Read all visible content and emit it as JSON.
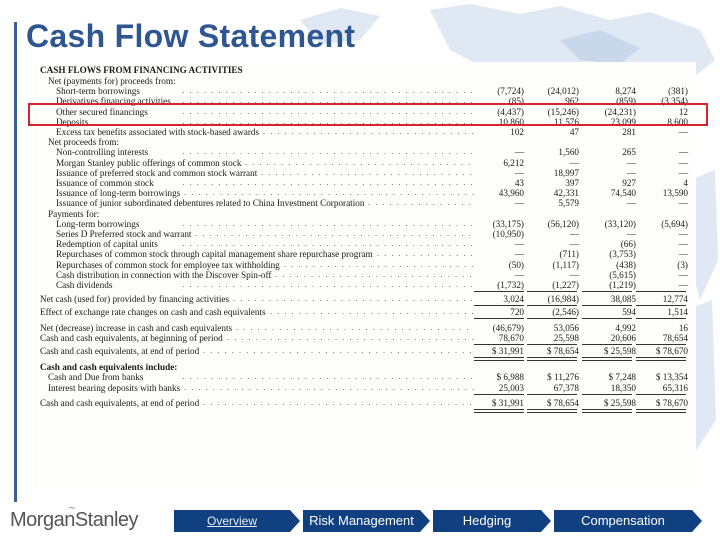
{
  "slide": {
    "title": "Cash Flow Statement"
  },
  "statement": {
    "section_title": "CASH FLOWS FROM FINANCING ACTIVITIES",
    "rows": [
      {
        "label": "Net (payments for) proceeds from:",
        "indent": 1,
        "values": [
          "",
          "",
          "",
          ""
        ]
      },
      {
        "label": "Short-term borrowings",
        "indent": 2,
        "values": [
          "(7,724)",
          "(24,012)",
          "8,274",
          "(381)"
        ]
      },
      {
        "label": "Derivatives financing activities",
        "indent": 2,
        "values": [
          "(85)",
          "962",
          "(859)",
          "(3,354)"
        ]
      },
      {
        "label": "Other secured financings",
        "indent": 2,
        "values": [
          "(4,437)",
          "(15,246)",
          "(24,231)",
          "12"
        ]
      },
      {
        "label": "Deposits",
        "indent": 2,
        "values": [
          "10,860",
          "11,576",
          "23,099",
          "8,600"
        ]
      },
      {
        "label": "Excess tax benefits associated with stock-based awards",
        "indent": 2,
        "values": [
          "102",
          "47",
          "281",
          "—"
        ]
      },
      {
        "label": "Net proceeds from:",
        "indent": 1,
        "values": [
          "",
          "",
          "",
          ""
        ]
      },
      {
        "label": "Non-controlling interests",
        "indent": 2,
        "values": [
          "—",
          "1,560",
          "265",
          "—"
        ]
      },
      {
        "label": "Morgan Stanley public offerings of common stock",
        "indent": 2,
        "values": [
          "6,212",
          "—",
          "—",
          "—"
        ]
      },
      {
        "label": "Issuance of preferred stock and common stock warrant",
        "indent": 2,
        "values": [
          "—",
          "18,997",
          "—",
          "—"
        ]
      },
      {
        "label": "Issuance of common stock",
        "indent": 2,
        "values": [
          "43",
          "397",
          "927",
          "4"
        ]
      },
      {
        "label": "Issuance of long-term borrowings",
        "indent": 2,
        "values": [
          "43,960",
          "42,331",
          "74,540",
          "13,590"
        ]
      },
      {
        "label": "Issuance of junior subordinated debentures related to China Investment Corporation",
        "indent": 2,
        "values": [
          "—",
          "5,579",
          "—",
          "—"
        ]
      },
      {
        "label": "Payments for:",
        "indent": 1,
        "values": [
          "",
          "",
          "",
          ""
        ]
      },
      {
        "label": "Long-term borrowings",
        "indent": 2,
        "values": [
          "(33,175)",
          "(56,120)",
          "(33,120)",
          "(5,694)"
        ]
      },
      {
        "label": "Series D Preferred stock and warrant",
        "indent": 2,
        "values": [
          "(10,950)",
          "—",
          "—",
          "—"
        ]
      },
      {
        "label": "Redemption of capital units",
        "indent": 2,
        "values": [
          "—",
          "—",
          "(66)",
          "—"
        ]
      },
      {
        "label": "Repurchases of common stock through capital management share repurchase program",
        "indent": 2,
        "values": [
          "—",
          "(711)",
          "(3,753)",
          "—"
        ]
      },
      {
        "label": "Repurchases of common stock for employee tax withholding",
        "indent": 2,
        "values": [
          "(50)",
          "(1,117)",
          "(438)",
          "(3)"
        ]
      },
      {
        "label": "Cash distribution in connection with the Discover Spin-off",
        "indent": 2,
        "values": [
          "—",
          "—",
          "(5,615)",
          "—"
        ]
      },
      {
        "label": "Cash dividends",
        "indent": 2,
        "values": [
          "(1,732)",
          "(1,227)",
          "(1,219)",
          "—"
        ]
      },
      {
        "label": "Net cash (used for) provided by financing activities",
        "indent": 0,
        "values": [
          "3,024",
          "(16,984)",
          "38,085",
          "12,774"
        ]
      },
      {
        "label": "Effect of exchange rate changes on cash and cash equivalents",
        "indent": 0,
        "values": [
          "720",
          "(2,546)",
          "594",
          "1,514"
        ]
      },
      {
        "label": "Net (decrease) increase in cash and cash equivalents",
        "indent": 0,
        "values": [
          "(46,679)",
          "53,056",
          "4,992",
          "16"
        ]
      },
      {
        "label": "Cash and cash equivalents, at beginning of period",
        "indent": 0,
        "values": [
          "78,670",
          "25,598",
          "20,606",
          "78,654"
        ]
      },
      {
        "label": "Cash and cash equivalents, at end of period",
        "indent": 0,
        "values": [
          "$ 31,991",
          "$ 78,654",
          "$ 25,598",
          "$ 78,670"
        ]
      },
      {
        "label": "Cash and cash equivalents include:",
        "indent": 0,
        "values": [
          "",
          "",
          "",
          ""
        ],
        "bold": true
      },
      {
        "label": "Cash and Due from banks",
        "indent": 1,
        "values": [
          "$ 6,988",
          "$ 11,276",
          "$ 7,248",
          "$ 13,354"
        ]
      },
      {
        "label": "Interest bearing deposits with banks",
        "indent": 1,
        "values": [
          "25,003",
          "67,378",
          "18,350",
          "65,316"
        ]
      },
      {
        "label": "Cash and cash equivalents, at end of period",
        "indent": 0,
        "values": [
          "$ 31,991",
          "$ 78,654",
          "$ 25,598",
          "$ 78,670"
        ]
      }
    ]
  },
  "footer": {
    "logo_text": "MorganStanley",
    "nav_tabs": [
      "Overview",
      "Risk Management",
      "Hedging",
      "Compensation"
    ]
  },
  "colors": {
    "title": "#2e5690",
    "nav_background": "#10407f",
    "highlight_border": "#d6262b"
  }
}
